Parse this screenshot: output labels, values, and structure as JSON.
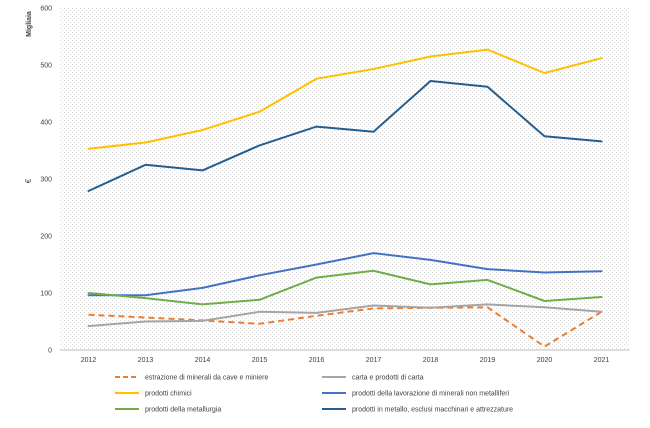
{
  "chart_data": {
    "type": "line",
    "ylabel": "€",
    "yunit": "Migliaia",
    "ylim": [
      0,
      600
    ],
    "yticks": [
      0,
      100,
      200,
      300,
      400,
      500,
      600
    ],
    "grid": false,
    "legend_position": "bottom",
    "categories": [
      "2012",
      "2013",
      "2014",
      "2015",
      "2016",
      "2017",
      "2018",
      "2019",
      "2020",
      "2021"
    ],
    "series": [
      {
        "name": "estrazione di minerali da cave e miniere",
        "color": "#ED7D31",
        "dash": true,
        "values": [
          62,
          57,
          52,
          46,
          60,
          73,
          74,
          75,
          6,
          67
        ]
      },
      {
        "name": "carta e prodotti di carta",
        "color": "#A5A5A5",
        "dash": false,
        "values": [
          42,
          50,
          51,
          67,
          65,
          78,
          74,
          80,
          75,
          67
        ]
      },
      {
        "name": "prodotti chimici",
        "color": "#FFC000",
        "dash": false,
        "values": [
          353,
          364,
          386,
          418,
          476,
          493,
          515,
          527,
          486,
          512
        ]
      },
      {
        "name": "prodotti della lavorazione di minerali non metalliferi",
        "color": "#4472C4",
        "dash": false,
        "values": [
          96,
          96,
          109,
          131,
          150,
          170,
          158,
          142,
          136,
          138
        ]
      },
      {
        "name": "prodotti della metallurgia",
        "color": "#70AD47",
        "dash": false,
        "values": [
          100,
          91,
          80,
          88,
          127,
          139,
          115,
          123,
          86,
          93
        ]
      },
      {
        "name": "prodotti in metallo, esclusi macchinari e attrezzature",
        "color": "#255E91",
        "dash": false,
        "values": [
          279,
          325,
          315,
          359,
          392,
          383,
          472,
          462,
          375,
          366
        ]
      }
    ]
  }
}
